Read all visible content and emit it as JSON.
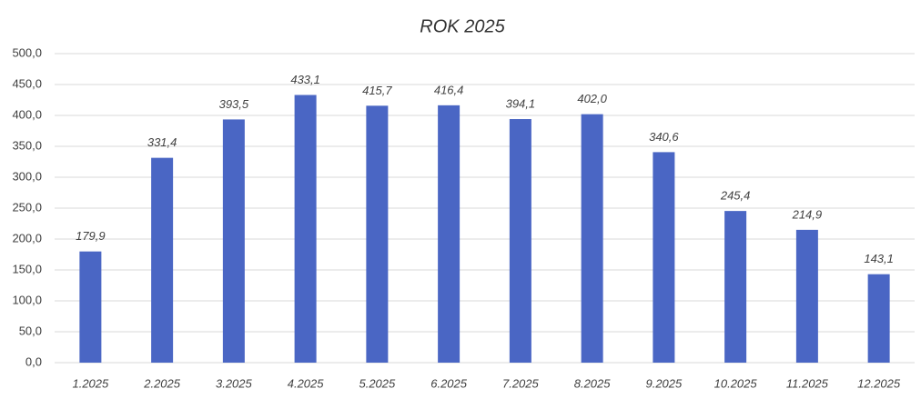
{
  "chart_data": {
    "type": "bar",
    "title": "ROK 2025",
    "categories": [
      "1.2025",
      "2.2025",
      "3.2025",
      "4.2025",
      "5.2025",
      "6.2025",
      "7.2025",
      "8.2025",
      "9.2025",
      "10.2025",
      "11.2025",
      "12.2025"
    ],
    "values": [
      179.9,
      331.4,
      393.5,
      433.1,
      415.7,
      416.4,
      394.1,
      402.0,
      340.6,
      245.4,
      214.9,
      143.1
    ],
    "value_labels": [
      "179,9",
      "331,4",
      "393,5",
      "433,1",
      "415,7",
      "416,4",
      "394,1",
      "402,0",
      "340,6",
      "245,4",
      "214,9",
      "143,1"
    ],
    "color": "#4a66c4",
    "ylim": [
      0,
      500
    ],
    "yticks": [
      {
        "value": 0,
        "label": "0,0"
      },
      {
        "value": 50,
        "label": "50,0"
      },
      {
        "value": 100,
        "label": "100,0"
      },
      {
        "value": 150,
        "label": "150,0"
      },
      {
        "value": 200,
        "label": "200,0"
      },
      {
        "value": 250,
        "label": "250,0"
      },
      {
        "value": 300,
        "label": "300,0"
      },
      {
        "value": 350,
        "label": "350,0"
      },
      {
        "value": 400,
        "label": "400,0"
      },
      {
        "value": 450,
        "label": "450,0"
      },
      {
        "value": 500,
        "label": "500,0"
      }
    ],
    "grid": true
  }
}
